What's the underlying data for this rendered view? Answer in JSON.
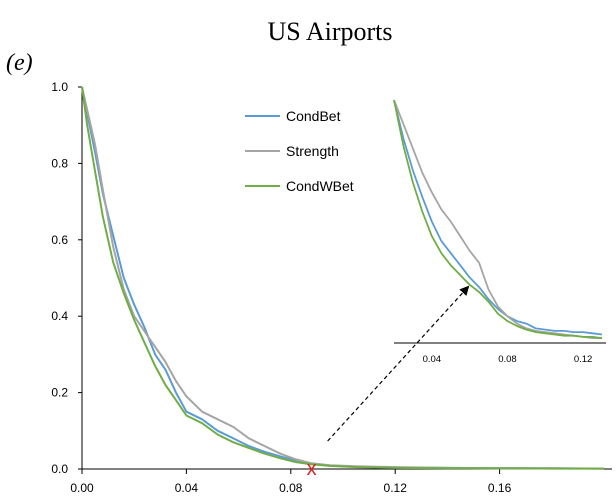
{
  "title": "US Airports",
  "panel_label": "(e)",
  "colors": {
    "CondBet": "#5b9bd5",
    "Strength": "#a5a5a5",
    "CondWBet": "#70ad47",
    "marker": "#e02020",
    "axis": "#000000"
  },
  "chart_data": [
    {
      "type": "line",
      "title": "US Airports",
      "xlabel": "",
      "ylabel": "",
      "xlim": [
        0,
        0.2
      ],
      "ylim": [
        0,
        1.0
      ],
      "x_ticks": [
        "0.00",
        "0.04",
        "0.08",
        "0.12",
        "0.16"
      ],
      "y_ticks": [
        "0.0",
        "0.2",
        "0.4",
        "0.6",
        "0.8",
        "1.0"
      ],
      "grid": false,
      "legend_position": "top-center",
      "series": [
        {
          "name": "CondBet",
          "x": [
            0.0,
            0.002,
            0.005,
            0.008,
            0.012,
            0.016,
            0.02,
            0.024,
            0.028,
            0.032,
            0.036,
            0.04,
            0.046,
            0.052,
            0.058,
            0.064,
            0.07,
            0.076,
            0.082,
            0.088,
            0.095,
            0.105,
            0.12,
            0.14,
            0.16,
            0.18,
            0.2
          ],
          "y": [
            1.0,
            0.93,
            0.83,
            0.72,
            0.61,
            0.5,
            0.43,
            0.37,
            0.3,
            0.26,
            0.2,
            0.15,
            0.13,
            0.1,
            0.08,
            0.06,
            0.045,
            0.033,
            0.022,
            0.014,
            0.009,
            0.006,
            0.004,
            0.003,
            0.002,
            0.002,
            0.001
          ]
        },
        {
          "name": "Strength",
          "x": [
            0.0,
            0.002,
            0.005,
            0.008,
            0.012,
            0.016,
            0.02,
            0.024,
            0.028,
            0.032,
            0.036,
            0.04,
            0.046,
            0.052,
            0.058,
            0.064,
            0.07,
            0.076,
            0.082,
            0.088,
            0.095,
            0.105,
            0.12,
            0.14,
            0.16,
            0.18,
            0.2
          ],
          "y": [
            1.0,
            0.94,
            0.85,
            0.73,
            0.58,
            0.47,
            0.4,
            0.36,
            0.32,
            0.28,
            0.23,
            0.19,
            0.15,
            0.13,
            0.11,
            0.08,
            0.06,
            0.04,
            0.025,
            0.015,
            0.01,
            0.007,
            0.005,
            0.003,
            0.002,
            0.002,
            0.001
          ]
        },
        {
          "name": "CondWBet",
          "x": [
            0.0,
            0.002,
            0.005,
            0.008,
            0.012,
            0.016,
            0.02,
            0.024,
            0.028,
            0.032,
            0.036,
            0.04,
            0.046,
            0.052,
            0.058,
            0.064,
            0.07,
            0.076,
            0.082,
            0.088,
            0.095,
            0.105,
            0.12,
            0.14,
            0.16,
            0.18,
            0.2
          ],
          "y": [
            1.0,
            0.9,
            0.78,
            0.66,
            0.54,
            0.46,
            0.39,
            0.33,
            0.27,
            0.22,
            0.18,
            0.14,
            0.12,
            0.09,
            0.07,
            0.055,
            0.04,
            0.028,
            0.018,
            0.012,
            0.008,
            0.005,
            0.003,
            0.002,
            0.002,
            0.001,
            0.001
          ]
        }
      ],
      "annotations": [
        {
          "text": "x",
          "x": 0.088,
          "y": 0.0
        }
      ]
    },
    {
      "type": "line",
      "title": "",
      "xlim": [
        0.02,
        0.13
      ],
      "x_ticks": [
        "0.04",
        "0.08",
        "0.12"
      ],
      "series": [
        {
          "name": "CondBet",
          "x": [
            0.02,
            0.025,
            0.03,
            0.035,
            0.04,
            0.045,
            0.05,
            0.055,
            0.06,
            0.065,
            0.07,
            0.075,
            0.08,
            0.085,
            0.09,
            0.095,
            0.1,
            0.105,
            0.11,
            0.115,
            0.12,
            0.125,
            0.13
          ],
          "y": [
            1.0,
            0.84,
            0.71,
            0.6,
            0.5,
            0.42,
            0.37,
            0.32,
            0.27,
            0.23,
            0.18,
            0.14,
            0.11,
            0.09,
            0.08,
            0.06,
            0.055,
            0.05,
            0.05,
            0.045,
            0.045,
            0.04,
            0.035
          ]
        },
        {
          "name": "Strength",
          "x": [
            0.02,
            0.025,
            0.03,
            0.035,
            0.04,
            0.045,
            0.05,
            0.055,
            0.06,
            0.065,
            0.07,
            0.075,
            0.08,
            0.085,
            0.09,
            0.095,
            0.1,
            0.105,
            0.11,
            0.115,
            0.12,
            0.125,
            0.13
          ],
          "y": [
            1.0,
            0.9,
            0.8,
            0.7,
            0.62,
            0.55,
            0.5,
            0.44,
            0.38,
            0.33,
            0.22,
            0.15,
            0.11,
            0.08,
            0.06,
            0.05,
            0.045,
            0.04,
            0.035,
            0.03,
            0.025,
            0.02,
            0.02
          ]
        },
        {
          "name": "CondWBet",
          "x": [
            0.02,
            0.025,
            0.03,
            0.035,
            0.04,
            0.045,
            0.05,
            0.055,
            0.06,
            0.065,
            0.07,
            0.075,
            0.08,
            0.085,
            0.09,
            0.095,
            0.1,
            0.105,
            0.11,
            0.115,
            0.12,
            0.125,
            0.13
          ],
          "y": [
            1.0,
            0.81,
            0.66,
            0.54,
            0.44,
            0.37,
            0.32,
            0.28,
            0.24,
            0.21,
            0.17,
            0.12,
            0.09,
            0.07,
            0.055,
            0.045,
            0.04,
            0.035,
            0.03,
            0.03,
            0.025,
            0.025,
            0.02
          ]
        }
      ]
    }
  ]
}
